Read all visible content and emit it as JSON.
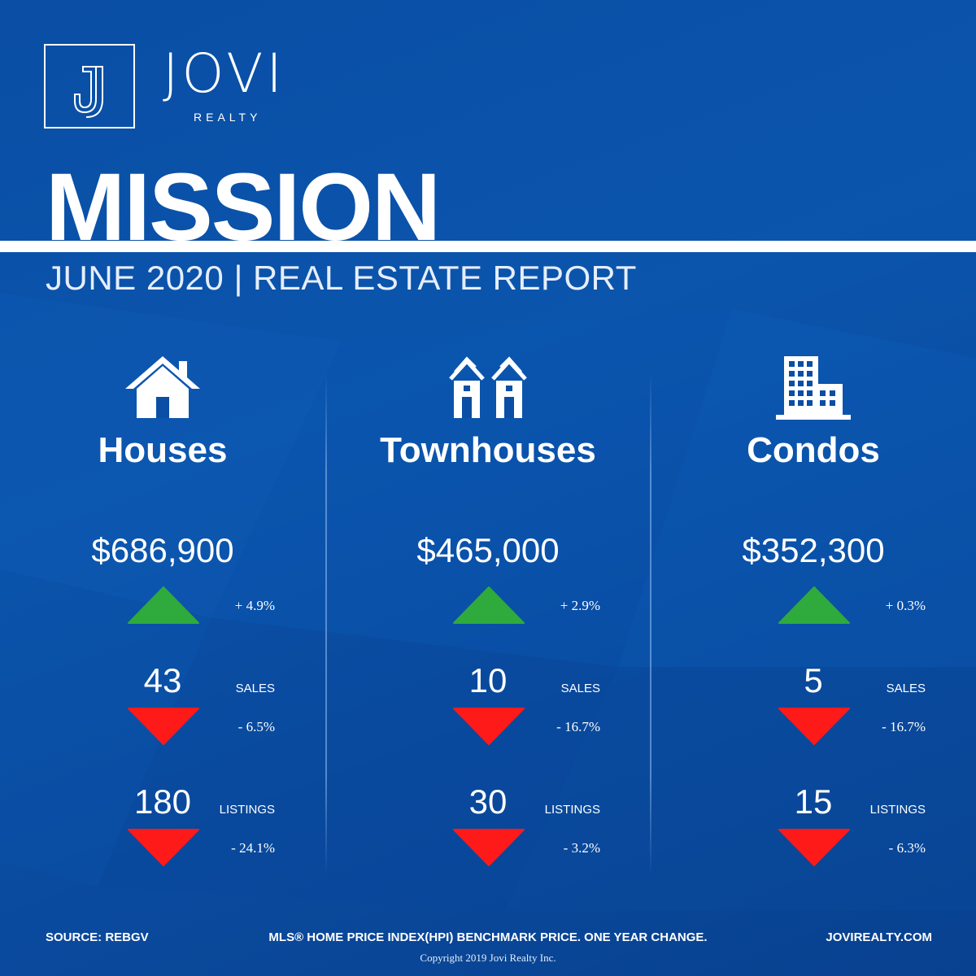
{
  "brand": {
    "logo_letter": "J",
    "name": "JOVI",
    "sub": "REALTY"
  },
  "report": {
    "city": "MISSION",
    "subtitle": "JUNE 2020 | REAL ESTATE REPORT"
  },
  "colors": {
    "background": "#0a4ea5",
    "text": "#ffffff",
    "increase": "#2faa3c",
    "decrease": "#ff1a1a"
  },
  "columns": [
    {
      "icon": "house-icon",
      "title": "Houses",
      "price": "$686,900",
      "price_change": "+ 4.9%",
      "price_trend": "up",
      "sales_value": "43",
      "sales_label": "SALES",
      "sales_change": "- 6.5%",
      "sales_trend": "down",
      "listings_value": "180",
      "listings_label": "LISTINGS",
      "listings_change": "- 24.1%",
      "listings_trend": "down"
    },
    {
      "icon": "townhouse-icon",
      "title": "Townhouses",
      "price": "$465,000",
      "price_change": "+ 2.9%",
      "price_trend": "up",
      "sales_value": "10",
      "sales_label": "SALES",
      "sales_change": "- 16.7%",
      "sales_trend": "down",
      "listings_value": "30",
      "listings_label": "LISTINGS",
      "listings_change": "- 3.2%",
      "listings_trend": "down"
    },
    {
      "icon": "condo-building-icon",
      "title": "Condos",
      "price": "$352,300",
      "price_change": "+ 0.3%",
      "price_trend": "up",
      "sales_value": "5",
      "sales_label": "SALES",
      "sales_change": "- 16.7%",
      "sales_trend": "down",
      "listings_value": "15",
      "listings_label": "LISTINGS",
      "listings_change": "- 6.3%",
      "listings_trend": "down"
    }
  ],
  "footer": {
    "source": "SOURCE:  REBGV",
    "note": "MLS® HOME PRICE INDEX(HPI) BENCHMARK PRICE. ONE YEAR CHANGE.",
    "website": "JOVIREALTY.COM",
    "copyright": "Copyright 2019 Jovi Realty Inc."
  }
}
